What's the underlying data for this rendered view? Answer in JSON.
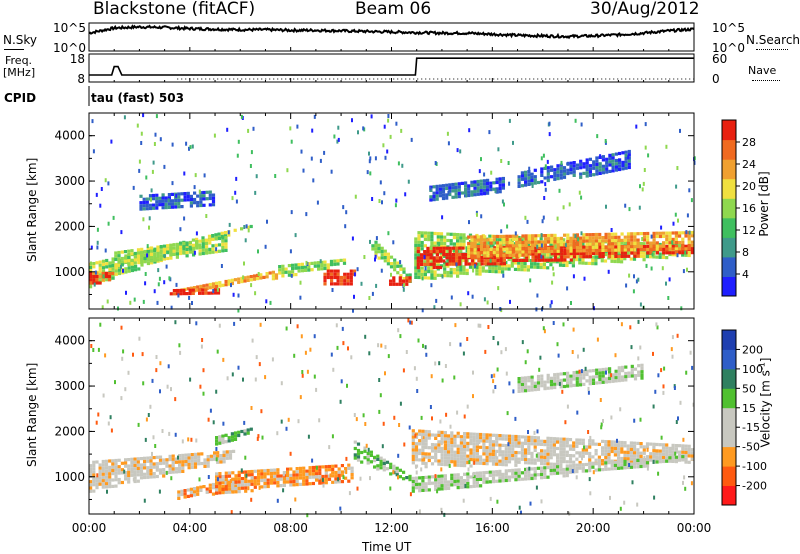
{
  "header": {
    "station": "Blackstone (fitACF)",
    "beam": "Beam 06",
    "date": "30/Aug/2012"
  },
  "noise_panel": {
    "left_label": "N.Sky",
    "right_label": "N.Search",
    "left_ticks": [
      "10^5",
      "10^0"
    ],
    "right_ticks": [
      "10^5",
      "10^0"
    ]
  },
  "freq_panel": {
    "left_label_line1": "Freq.",
    "left_label_line2": "[MHz]",
    "right_label": "Nave",
    "left_ticks": [
      "18",
      "8"
    ],
    "right_ticks": [
      "60",
      "0"
    ]
  },
  "cpid": {
    "label": "CPID",
    "program": "tau (fast) 503"
  },
  "x_axis": {
    "label": "Time UT",
    "ticks": [
      "00:00",
      "04:00",
      "08:00",
      "12:00",
      "16:00",
      "20:00",
      "00:00"
    ]
  },
  "colors": {
    "power": [
      "#1f1fff",
      "#2f5ec8",
      "#3f9a8a",
      "#3fbf5f",
      "#8fd84f",
      "#f0e040",
      "#f0a030",
      "#f06a20",
      "#e82010"
    ],
    "velocity": [
      "#ff1a1a",
      "#ff5a10",
      "#ff9a20",
      "#c8c8c0",
      "#c8c8c0",
      "#50c030",
      "#2f8060",
      "#2f5ec8",
      "#1f3fb0"
    ]
  },
  "chart_data": [
    {
      "type": "line",
      "name": "noise",
      "x": [
        0,
        1,
        2,
        3,
        4,
        5,
        6,
        7,
        8,
        9,
        10,
        11,
        12,
        13,
        14,
        15,
        16,
        17,
        18,
        19,
        20,
        21,
        22,
        23,
        24
      ],
      "xlim": [
        0,
        24
      ],
      "series": [
        {
          "values": [
            3.2,
            4.1,
            4.3,
            4.2,
            4.0,
            3.9,
            3.8,
            3.8,
            3.7,
            3.7,
            3.6,
            3.5,
            3.4,
            3.3,
            3.2,
            3.2,
            3.0,
            2.8,
            2.7,
            2.6,
            2.7,
            2.9,
            3.2,
            3.6,
            3.9
          ]
        }
      ]
    },
    {
      "type": "line",
      "name": "frequency",
      "x": [
        0,
        0.9,
        1.0,
        1.15,
        1.3,
        12.95,
        13.0,
        24
      ],
      "xlim": [
        0,
        24
      ],
      "ylim": [
        8,
        18
      ],
      "series": [
        {
          "values": [
            10.5,
            10.5,
            13.5,
            13.5,
            10.5,
            10.5,
            16.5,
            16.5
          ]
        }
      ]
    },
    {
      "type": "heatmap",
      "name": "power",
      "ylabel": "Slant Range [km]",
      "colorbar_label": "Power [dB]",
      "colorbar_ticks": [
        "28",
        "24",
        "20",
        "16",
        "12",
        "8",
        "4"
      ],
      "yticks": [
        "1000",
        "2000",
        "3000",
        "4000"
      ],
      "ylim": [
        180,
        4500
      ],
      "xlim": [
        0,
        24
      ],
      "bands": [
        {
          "t": [
            0,
            6.5
          ],
          "r0": [
            700,
            2050
          ],
          "r1": [
            1200,
            2050
          ],
          "level": 4
        },
        {
          "t": [
            0,
            1.0
          ],
          "r0": [
            750,
            850
          ],
          "r1": [
            1000,
            1000
          ],
          "level": 7
        },
        {
          "t": [
            1.0,
            5.5
          ],
          "r0": [
            1150,
            1500
          ],
          "r1": [
            1450,
            1800
          ],
          "level": 4
        },
        {
          "t": [
            3.5,
            7.5
          ],
          "r0": [
            560,
            900
          ],
          "r1": [
            620,
            1050
          ],
          "level": 6
        },
        {
          "t": [
            3.2,
            5.2
          ],
          "r0": [
            540,
            560
          ],
          "r1": [
            620,
            640
          ],
          "level": 8
        },
        {
          "t": [
            7.5,
            10.2
          ],
          "r0": [
            900,
            1200
          ],
          "r1": [
            1150,
            1300
          ],
          "level": 4
        },
        {
          "t": [
            9.3,
            10.6
          ],
          "r0": [
            700,
            700
          ],
          "r1": [
            1050,
            1050
          ],
          "level": 8
        },
        {
          "t": [
            11.2,
            12.8
          ],
          "r0": [
            1450,
            700
          ],
          "r1": [
            1750,
            900
          ],
          "level": 4
        },
        {
          "t": [
            11.9,
            12.8
          ],
          "r0": [
            700,
            700
          ],
          "r1": [
            900,
            900
          ],
          "level": 8
        },
        {
          "t": [
            12.9,
            24
          ],
          "r0": [
            850,
            1400
          ],
          "r1": [
            1900,
            1600
          ],
          "level": 4
        },
        {
          "t": [
            13.0,
            24
          ],
          "r0": [
            1100,
            1450
          ],
          "r1": [
            1550,
            1600
          ],
          "level": 8
        },
        {
          "t": [
            15.0,
            24
          ],
          "r0": [
            1350,
            1550
          ],
          "r1": [
            1800,
            1900
          ],
          "level": 6
        },
        {
          "t": [
            13.5,
            16.5
          ],
          "r0": [
            2600,
            2800
          ],
          "r1": [
            2900,
            3100
          ],
          "level": 1
        },
        {
          "t": [
            17.0,
            21.5
          ],
          "r0": [
            2900,
            3300
          ],
          "r1": [
            3200,
            3700
          ],
          "level": 1
        },
        {
          "t": [
            2.0,
            5.0
          ],
          "r0": [
            2400,
            2500
          ],
          "r1": [
            2700,
            2800
          ],
          "level": 1
        }
      ]
    },
    {
      "type": "heatmap",
      "name": "velocity",
      "ylabel": "Slant Range [km]",
      "colorbar_label": "Velocity [m s^-1]",
      "colorbar_ticks": [
        "200",
        "100",
        "50",
        "15",
        "-15",
        "-50",
        "-100",
        "-200"
      ],
      "yticks": [
        "1000",
        "2000",
        "3000",
        "4000"
      ],
      "ylim": [
        180,
        4500
      ],
      "xlim": [
        0,
        24
      ],
      "bands": [
        {
          "t": [
            0,
            5.8
          ],
          "r0": [
            700,
            1400
          ],
          "r1": [
            1350,
            1600
          ],
          "level": 3
        },
        {
          "t": [
            3.5,
            6.0
          ],
          "r0": [
            520,
            750
          ],
          "r1": [
            700,
            1000
          ],
          "level": 2
        },
        {
          "t": [
            5.0,
            10.5
          ],
          "r0": [
            650,
            950
          ],
          "r1": [
            1100,
            1300
          ],
          "level": 2
        },
        {
          "t": [
            5.0,
            6.5
          ],
          "r0": [
            1700,
            2000
          ],
          "r1": [
            1900,
            2100
          ],
          "level": 5
        },
        {
          "t": [
            10.5,
            12.8
          ],
          "r0": [
            1400,
            900
          ],
          "r1": [
            1800,
            1000
          ],
          "level": 5
        },
        {
          "t": [
            12.8,
            24
          ],
          "r0": [
            1250,
            1350
          ],
          "r1": [
            2050,
            1700
          ],
          "level": 3
        },
        {
          "t": [
            12.8,
            24
          ],
          "r0": [
            650,
            1400
          ],
          "r1": [
            1000,
            1500
          ],
          "level": 4
        },
        {
          "t": [
            17.0,
            22.0
          ],
          "r0": [
            2900,
            3200
          ],
          "r1": [
            3200,
            3500
          ],
          "level": 4
        }
      ]
    }
  ]
}
